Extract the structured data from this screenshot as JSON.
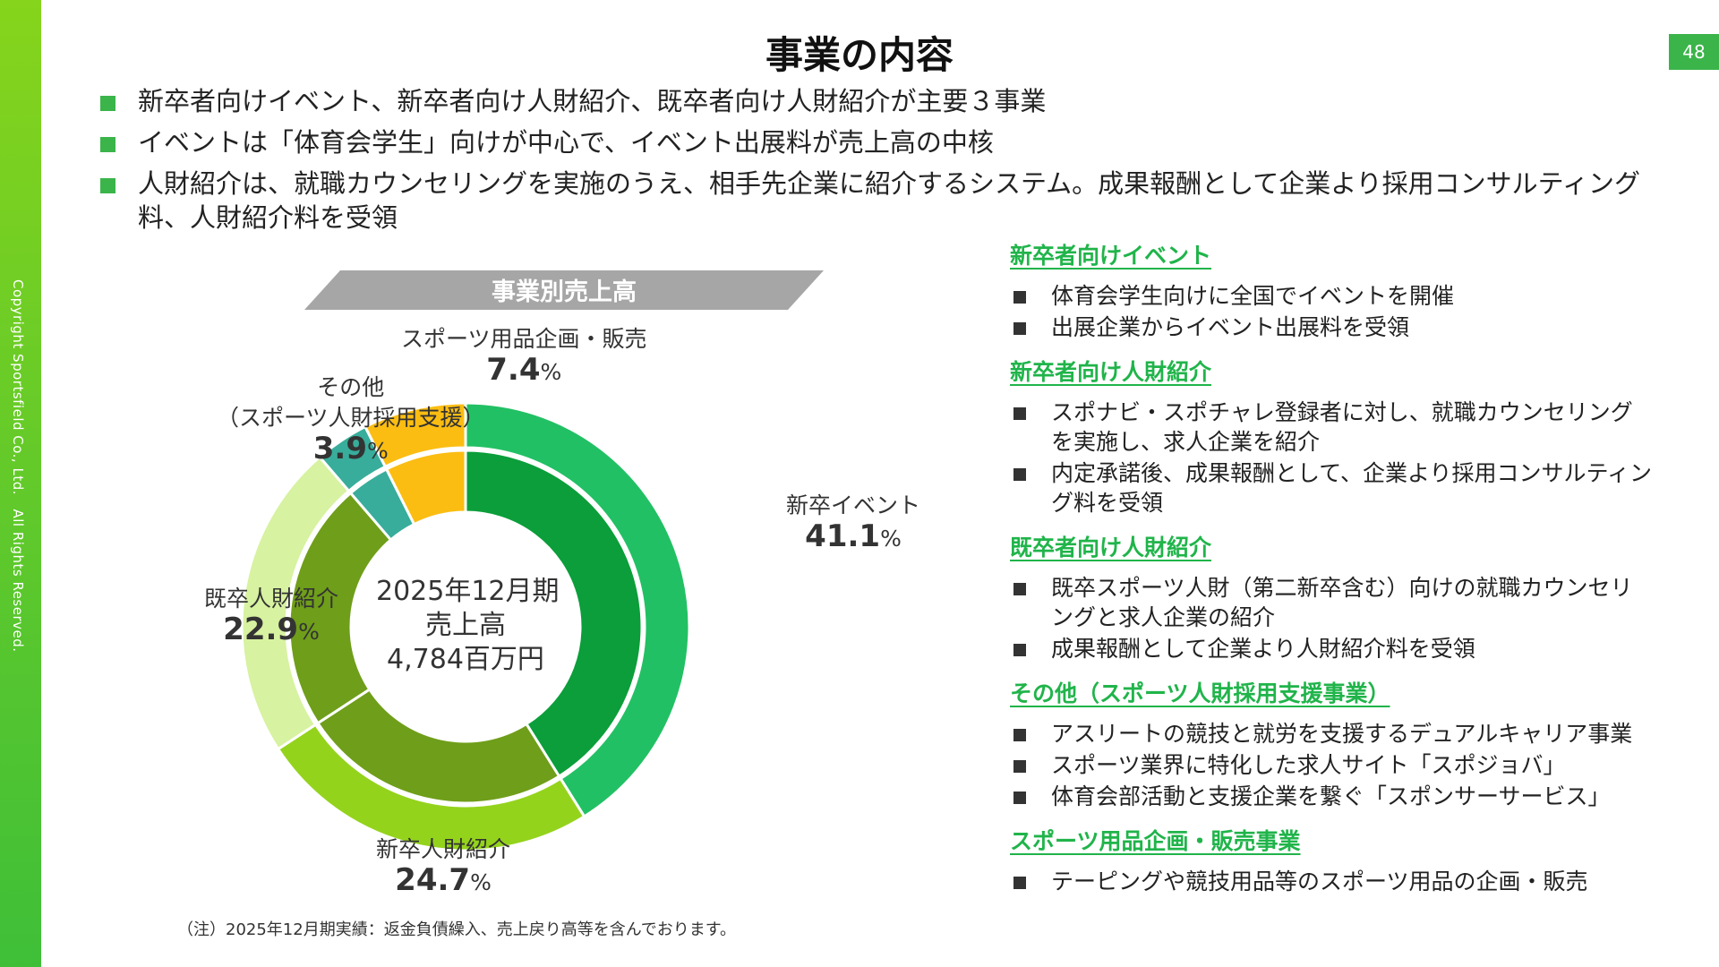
{
  "page": {
    "title": "事業の内容",
    "page_number": "48",
    "copyright": "Copyright Sportsfield Co., Ltd.　All Rights Reserved."
  },
  "bullets": [
    "新卒者向けイベント、新卒者向け人財紹介、既卒者向け人財紹介が主要３事業",
    "イベントは「体育会学生」向けが中心で、イベント出展料が売上高の中核",
    "人財紹介は、就職カウンセリングを実施のうえ、相手先企業に紹介するシステム。成果報酬として企業より採用コンサルティング料、人財紹介料を受領"
  ],
  "colors": {
    "accent": "#3bb44a",
    "title_green": "#20b44a",
    "banner_gray": "#a6a6a6"
  },
  "chart_data": {
    "type": "pie",
    "variant": "donut",
    "title": "事業別売上高",
    "center_text": [
      "2025年12月期",
      "売上高",
      "4,784百万円"
    ],
    "unit": "%",
    "slices": [
      {
        "name": "新卒イベント",
        "value": 41.1,
        "label_value": "41.1",
        "outer_color": "#22c064",
        "inner_color": "#0b9e3a"
      },
      {
        "name": "新卒人財紹介",
        "value": 24.7,
        "label_value": "24.7",
        "outer_color": "#94d31c",
        "inner_color": "#6f9e1a"
      },
      {
        "name": "既卒人財紹介",
        "value": 22.9,
        "label_value": "22.9",
        "outer_color": "#d7f2a0",
        "inner_color": "#6f9e1a"
      },
      {
        "name_lines": [
          "その他",
          "（スポーツ人財採用支援）"
        ],
        "value": 3.9,
        "label_value": "3.9",
        "outer_color": "#38ad9b",
        "inner_color": "#38ad9b"
      },
      {
        "name": "スポーツ用品企画・販売",
        "value": 7.4,
        "label_value": "7.4",
        "outer_color": "#fbbd12",
        "inner_color": "#fbbd12"
      }
    ],
    "note": "（注）2025年12月期実績：返金負債繰入、売上戻り高等を含んでおります。"
  },
  "sections": [
    {
      "title": "新卒者向けイベント",
      "items": [
        "体育会学生向けに全国でイベントを開催",
        "出展企業からイベント出展料を受領"
      ]
    },
    {
      "title": "新卒者向け人財紹介",
      "items": [
        "スポナビ・スポチャレ登録者に対し、就職カウンセリングを実施し、求人企業を紹介",
        "内定承諾後、成果報酬として、企業より採用コンサルティング料を受領"
      ]
    },
    {
      "title": "既卒者向け人財紹介",
      "items": [
        "既卒スポーツ人財（第二新卒含む）向けの就職カウンセリングと求人企業の紹介",
        "成果報酬として企業より人財紹介料を受領"
      ]
    },
    {
      "title": "その他（スポーツ人財採用支援事業）",
      "items": [
        "アスリートの競技と就労を支援するデュアルキャリア事業",
        "スポーツ業界に特化した求人サイト「スポジョバ」",
        "体育会部活動と支援企業を繋ぐ「スポンサーサービス」"
      ]
    },
    {
      "title": "スポーツ用品企画・販売事業",
      "items": [
        "テーピングや競技用品等のスポーツ用品の企画・販売"
      ]
    }
  ]
}
